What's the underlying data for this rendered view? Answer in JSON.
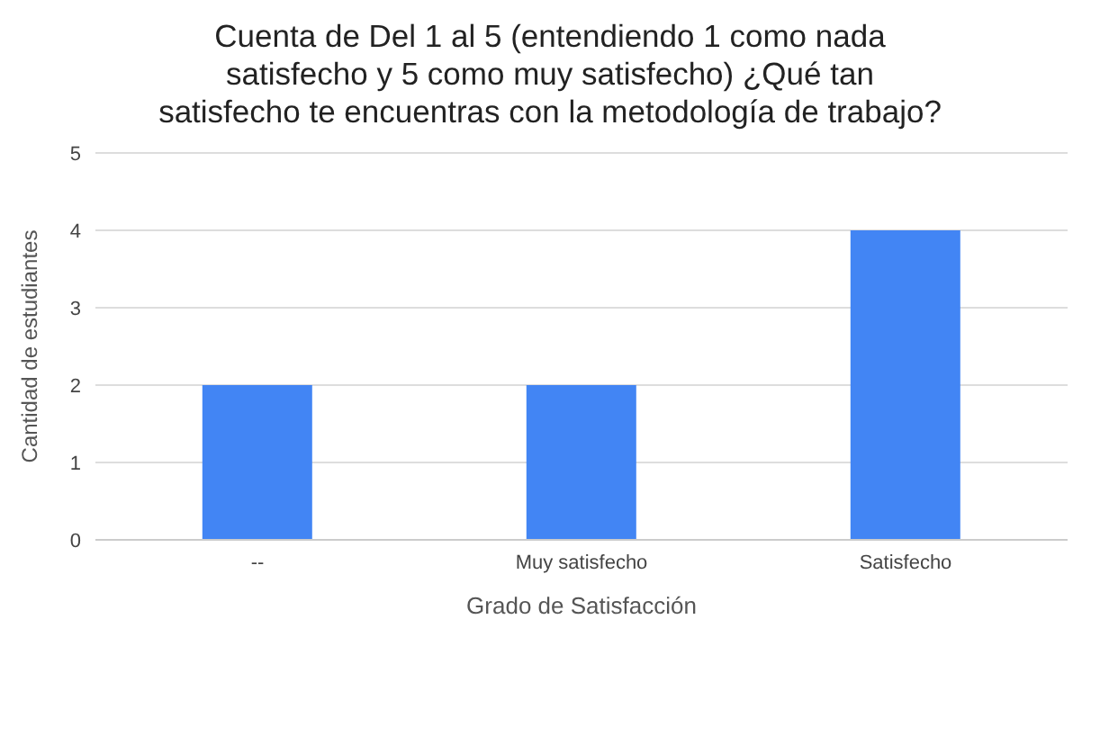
{
  "chart_data": {
    "type": "bar",
    "title": "Cuenta de Del 1 al 5 (entendiendo 1 como nada satisfecho y 5 como muy satisfecho) ¿Qué tan satisfecho te encuentras con la metodología de trabajo?",
    "xlabel": "Grado de Satisfacción",
    "ylabel": "Cantidad de estudiantes",
    "categories": [
      "--",
      "Muy satisfecho",
      "Satisfecho"
    ],
    "values": [
      2,
      2,
      4
    ],
    "color": "#4285f4",
    "ylim": [
      0,
      5
    ],
    "yticks": [
      0,
      1,
      2,
      3,
      4,
      5
    ],
    "grid": "y"
  }
}
